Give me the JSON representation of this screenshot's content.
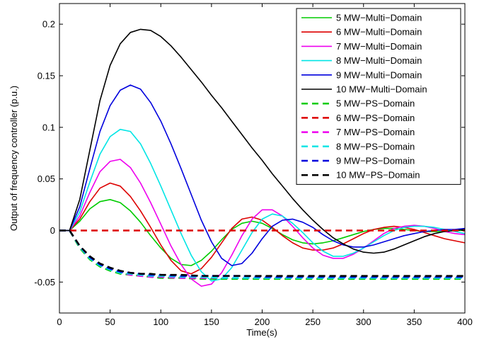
{
  "chart_data": {
    "type": "line",
    "title": "",
    "xlabel": "Time(s)",
    "ylabel": "Output of frequency controller (p.u.)",
    "xlim": [
      0,
      400
    ],
    "ylim": [
      -0.08,
      0.22
    ],
    "x_ticks": [
      0,
      50,
      100,
      150,
      200,
      250,
      300,
      350,
      400
    ],
    "x_tick_labels": [
      "0",
      "50",
      "100",
      "150",
      "200",
      "250",
      "300",
      "350",
      "400"
    ],
    "y_ticks": [
      -0.05,
      0,
      0.05,
      0.1,
      0.15,
      0.2
    ],
    "y_tick_labels": [
      "-0.05",
      "0",
      "0.05",
      "0.1",
      "0.15",
      "0.2"
    ],
    "grid": false,
    "legend_position": "top-right",
    "series": [
      {
        "name": "5 MW−Multi−Domain",
        "color": "#00cc00",
        "style": "solid",
        "x": [
          0,
          10,
          20,
          30,
          40,
          50,
          60,
          70,
          80,
          90,
          100,
          110,
          120,
          130,
          140,
          150,
          160,
          170,
          180,
          190,
          200,
          210,
          220,
          230,
          240,
          250,
          260,
          270,
          280,
          290,
          300,
          310,
          320,
          330,
          340,
          350,
          360,
          370,
          380,
          390,
          400
        ],
        "y": [
          0,
          0,
          0.009,
          0.021,
          0.028,
          0.03,
          0.027,
          0.019,
          0.008,
          -0.005,
          -0.017,
          -0.027,
          -0.033,
          -0.034,
          -0.029,
          -0.02,
          -0.009,
          0.001,
          0.007,
          0.009,
          0.007,
          0.002,
          -0.004,
          -0.009,
          -0.012,
          -0.013,
          -0.012,
          -0.01,
          -0.007,
          -0.004,
          -0.001,
          0.001,
          0.002,
          0.002,
          0.001,
          0.0,
          -0.001,
          -0.001,
          -0.001,
          0,
          0
        ]
      },
      {
        "name": "6 MW−Multi−Domain",
        "color": "#dd0000",
        "style": "solid",
        "x": [
          0,
          10,
          20,
          30,
          40,
          50,
          60,
          70,
          80,
          90,
          100,
          110,
          120,
          130,
          140,
          150,
          160,
          170,
          180,
          190,
          200,
          210,
          220,
          230,
          240,
          250,
          260,
          270,
          280,
          290,
          300,
          310,
          320,
          330,
          340,
          350,
          360,
          370,
          380,
          390,
          400
        ],
        "y": [
          0,
          0,
          0.011,
          0.028,
          0.041,
          0.046,
          0.043,
          0.033,
          0.019,
          0.003,
          -0.014,
          -0.029,
          -0.039,
          -0.042,
          -0.037,
          -0.026,
          -0.012,
          0.002,
          0.011,
          0.013,
          0.01,
          0.003,
          -0.005,
          -0.012,
          -0.017,
          -0.019,
          -0.019,
          -0.017,
          -0.013,
          -0.008,
          -0.003,
          0.001,
          0.003,
          0.004,
          0.003,
          0.001,
          -0.002,
          -0.005,
          -0.008,
          -0.01,
          -0.012
        ]
      },
      {
        "name": "7 MW−Multi−Domain",
        "color": "#ee00ee",
        "style": "solid",
        "x": [
          0,
          10,
          20,
          30,
          40,
          50,
          60,
          70,
          80,
          90,
          100,
          110,
          120,
          130,
          140,
          150,
          160,
          170,
          180,
          190,
          200,
          210,
          220,
          230,
          240,
          250,
          260,
          270,
          280,
          290,
          300,
          310,
          320,
          330,
          340,
          350,
          360,
          370,
          380,
          390,
          400
        ],
        "y": [
          0,
          0,
          0.014,
          0.037,
          0.057,
          0.067,
          0.069,
          0.061,
          0.046,
          0.027,
          0.006,
          -0.015,
          -0.033,
          -0.047,
          -0.054,
          -0.052,
          -0.041,
          -0.024,
          -0.005,
          0.011,
          0.02,
          0.02,
          0.014,
          0.004,
          -0.007,
          -0.017,
          -0.024,
          -0.027,
          -0.027,
          -0.023,
          -0.017,
          -0.01,
          -0.003,
          0.002,
          0.004,
          0.005,
          0.004,
          0.002,
          -0.001,
          -0.003,
          -0.004
        ]
      },
      {
        "name": "8 MW−Multi−Domain",
        "color": "#00e5e5",
        "style": "solid",
        "x": [
          0,
          10,
          20,
          30,
          40,
          50,
          60,
          70,
          80,
          90,
          100,
          110,
          120,
          130,
          140,
          150,
          160,
          170,
          180,
          190,
          200,
          210,
          220,
          230,
          240,
          250,
          260,
          270,
          280,
          290,
          300,
          310,
          320,
          330,
          340,
          350,
          360,
          370,
          380,
          390,
          400
        ],
        "y": [
          0,
          0,
          0.018,
          0.047,
          0.074,
          0.091,
          0.098,
          0.096,
          0.084,
          0.065,
          0.043,
          0.02,
          -0.003,
          -0.024,
          -0.04,
          -0.049,
          -0.047,
          -0.036,
          -0.019,
          -0.002,
          0.011,
          0.016,
          0.014,
          0.007,
          -0.002,
          -0.012,
          -0.02,
          -0.025,
          -0.025,
          -0.022,
          -0.017,
          -0.011,
          -0.005,
          0,
          0.003,
          0.004,
          0.004,
          0.003,
          0.001,
          -0.001,
          -0.003
        ]
      },
      {
        "name": "9 MW−Multi−Domain",
        "color": "#0000dd",
        "style": "solid",
        "x": [
          0,
          10,
          20,
          30,
          40,
          50,
          60,
          70,
          80,
          90,
          100,
          110,
          120,
          130,
          140,
          150,
          160,
          170,
          180,
          190,
          200,
          210,
          220,
          230,
          240,
          250,
          260,
          270,
          280,
          290,
          300,
          310,
          320,
          330,
          340,
          350,
          360,
          370,
          380,
          390,
          400
        ],
        "y": [
          0,
          0,
          0.023,
          0.06,
          0.096,
          0.121,
          0.136,
          0.141,
          0.137,
          0.124,
          0.106,
          0.084,
          0.06,
          0.035,
          0.01,
          -0.011,
          -0.027,
          -0.034,
          -0.032,
          -0.022,
          -0.008,
          0.004,
          0.01,
          0.011,
          0.008,
          0.003,
          -0.004,
          -0.01,
          -0.014,
          -0.016,
          -0.016,
          -0.014,
          -0.011,
          -0.008,
          -0.005,
          -0.003,
          -0.001,
          0.0,
          0.001,
          0.001,
          0.002
        ]
      },
      {
        "name": "10 MW−Multi−Domain",
        "color": "#000000",
        "style": "solid",
        "x": [
          0,
          10,
          20,
          30,
          40,
          50,
          60,
          70,
          80,
          90,
          100,
          110,
          120,
          130,
          140,
          150,
          160,
          170,
          180,
          190,
          200,
          210,
          220,
          230,
          240,
          250,
          260,
          270,
          280,
          290,
          300,
          310,
          320,
          330,
          340,
          350,
          360,
          370,
          380,
          390,
          400
        ],
        "y": [
          0,
          0,
          0.03,
          0.078,
          0.126,
          0.16,
          0.181,
          0.192,
          0.195,
          0.194,
          0.188,
          0.179,
          0.168,
          0.156,
          0.144,
          0.131,
          0.119,
          0.106,
          0.093,
          0.08,
          0.068,
          0.055,
          0.043,
          0.031,
          0.02,
          0.01,
          0.001,
          -0.007,
          -0.013,
          -0.018,
          -0.021,
          -0.022,
          -0.021,
          -0.018,
          -0.014,
          -0.01,
          -0.006,
          -0.003,
          -0.001,
          0.0,
          0.001
        ]
      },
      {
        "name": "5 MW−PS−Domain",
        "color": "#00cc00",
        "style": "dashed",
        "x": [
          0,
          10,
          20,
          30,
          40,
          50,
          60,
          70,
          80,
          90,
          100,
          120,
          140,
          160,
          180,
          200,
          250,
          300,
          350,
          400
        ],
        "y": [
          0,
          0,
          -0.017,
          -0.028,
          -0.035,
          -0.039,
          -0.042,
          -0.043,
          -0.044,
          -0.045,
          -0.046,
          -0.046,
          -0.047,
          -0.047,
          -0.047,
          -0.047,
          -0.047,
          -0.047,
          -0.047,
          -0.047
        ]
      },
      {
        "name": "6 MW−PS−Domain",
        "color": "#dd0000",
        "style": "dashed",
        "x": [
          0,
          10,
          20,
          30,
          40,
          50,
          60,
          70,
          80,
          90,
          100,
          200,
          300,
          400
        ],
        "y": [
          0,
          0,
          0,
          0,
          0,
          0,
          0,
          0,
          0,
          0,
          0,
          0,
          0,
          0
        ]
      },
      {
        "name": "7 MW−PS−Domain",
        "color": "#ee00ee",
        "style": "dashed",
        "x": [
          0,
          10,
          20,
          30,
          40,
          50,
          60,
          70,
          80,
          90,
          100,
          120,
          140,
          160,
          180,
          200,
          250,
          300,
          350,
          400
        ],
        "y": [
          0,
          0,
          -0.016,
          -0.027,
          -0.034,
          -0.038,
          -0.041,
          -0.043,
          -0.044,
          -0.045,
          -0.045,
          -0.046,
          -0.046,
          -0.046,
          -0.046,
          -0.046,
          -0.046,
          -0.046,
          -0.046,
          -0.046
        ]
      },
      {
        "name": "8 MW−PS−Domain",
        "color": "#00e5e5",
        "style": "dashed",
        "x": [
          0,
          10,
          20,
          30,
          40,
          50,
          60,
          70,
          80,
          90,
          100,
          120,
          140,
          160,
          180,
          200,
          250,
          300,
          350,
          400
        ],
        "y": [
          0,
          0,
          -0.016,
          -0.027,
          -0.034,
          -0.038,
          -0.041,
          -0.042,
          -0.043,
          -0.044,
          -0.044,
          -0.045,
          -0.045,
          -0.046,
          -0.046,
          -0.046,
          -0.046,
          -0.046,
          -0.046,
          -0.046
        ]
      },
      {
        "name": "9 MW−PS−Domain",
        "color": "#0000dd",
        "style": "dashed",
        "x": [
          0,
          10,
          20,
          30,
          40,
          50,
          60,
          70,
          80,
          90,
          100,
          120,
          140,
          160,
          180,
          200,
          250,
          300,
          350,
          400
        ],
        "y": [
          0,
          0,
          -0.015,
          -0.026,
          -0.033,
          -0.037,
          -0.04,
          -0.041,
          -0.042,
          -0.043,
          -0.043,
          -0.044,
          -0.044,
          -0.044,
          -0.044,
          -0.045,
          -0.045,
          -0.045,
          -0.045,
          -0.045
        ]
      },
      {
        "name": "10 MW−PS−Domain",
        "color": "#000000",
        "style": "dashed",
        "x": [
          0,
          10,
          20,
          30,
          40,
          50,
          60,
          70,
          80,
          90,
          100,
          120,
          140,
          160,
          180,
          200,
          250,
          300,
          350,
          400
        ],
        "y": [
          0,
          0,
          -0.015,
          -0.025,
          -0.032,
          -0.036,
          -0.039,
          -0.041,
          -0.042,
          -0.042,
          -0.043,
          -0.043,
          -0.044,
          -0.044,
          -0.044,
          -0.044,
          -0.044,
          -0.044,
          -0.044,
          -0.044
        ]
      }
    ]
  }
}
